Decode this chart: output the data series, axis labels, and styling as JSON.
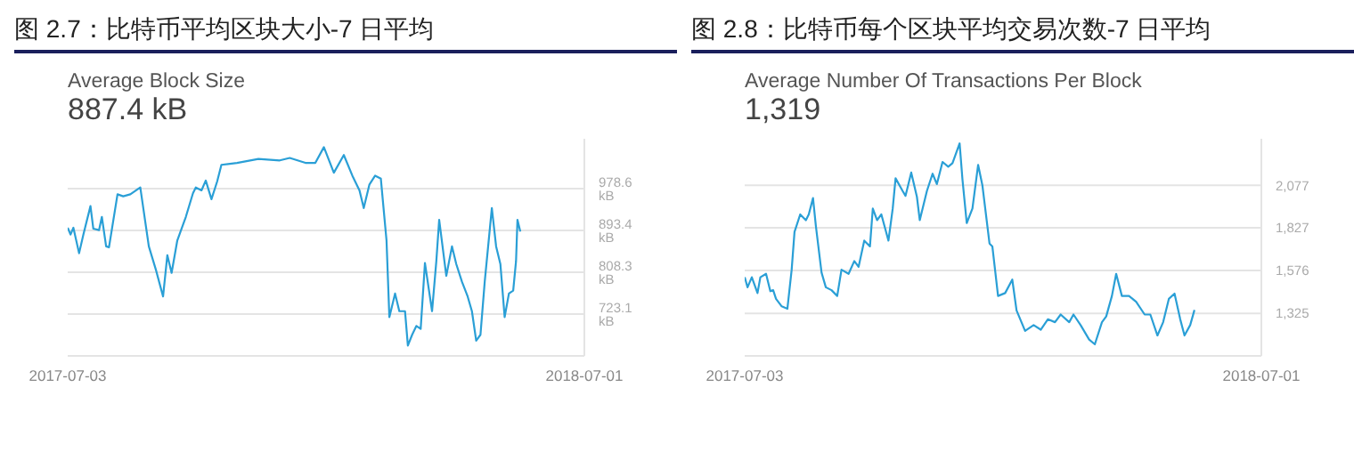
{
  "chart_data": [
    {
      "type": "line",
      "title": "图 2.7：比特币平均区块大小-7 日平均",
      "subtitle": "Average Block Size",
      "annotations": [
        "887.4 kB"
      ],
      "grid": "y",
      "xlim": [
        "2017-07-03",
        "2018-07-01"
      ],
      "xticks": [
        "2017-07-03",
        "2018-07-01"
      ],
      "ylim": [
        638,
        1080
      ],
      "yticks": [
        {
          "value": 638,
          "label": null
        },
        {
          "value": 723.1,
          "label": "723.1 kB"
        },
        {
          "value": 808.3,
          "label": "808.3 kB"
        },
        {
          "value": 893.4,
          "label": "893.4 kB"
        },
        {
          "value": 978.6,
          "label": "978.6 kB"
        }
      ],
      "x": [
        "2017-07-03",
        "2017-07-05",
        "2017-07-07",
        "2017-07-11",
        "2017-07-14",
        "2017-07-19",
        "2017-07-21",
        "2017-07-25",
        "2017-07-27",
        "2017-07-30",
        "2017-08-01",
        "2017-08-07",
        "2017-08-11",
        "2017-08-16",
        "2017-08-23",
        "2017-08-29",
        "2017-09-03",
        "2017-09-08",
        "2017-09-11",
        "2017-09-14",
        "2017-09-18",
        "2017-09-24",
        "2017-09-29",
        "2017-10-01",
        "2017-10-05",
        "2017-10-08",
        "2017-10-12",
        "2017-10-16",
        "2017-10-19",
        "2017-10-30",
        "2017-11-14",
        "2017-11-29",
        "2017-12-06",
        "2017-12-17",
        "2017-12-24",
        "2017-12-30",
        "2018-01-06",
        "2018-01-13",
        "2018-01-19",
        "2018-01-24",
        "2018-01-27",
        "2018-01-31",
        "2018-02-04",
        "2018-02-08",
        "2018-02-12",
        "2018-02-14",
        "2018-02-18",
        "2018-02-21",
        "2018-02-25",
        "2018-02-27",
        "2018-03-02",
        "2018-03-05",
        "2018-03-08",
        "2018-03-11",
        "2018-03-16",
        "2018-03-19",
        "2018-03-21",
        "2018-03-26",
        "2018-03-30",
        "2018-04-02",
        "2018-04-06",
        "2018-04-10",
        "2018-04-13",
        "2018-04-16",
        "2018-04-19",
        "2018-04-22",
        "2018-04-27",
        "2018-04-30",
        "2018-05-03",
        "2018-05-06",
        "2018-05-09",
        "2018-05-12",
        "2018-05-14",
        "2018-05-15",
        "2018-05-17"
      ],
      "series": [
        {
          "color": "#2a9fd6",
          "values": [
            899,
            885,
            899,
            847,
            885,
            943,
            897,
            894,
            921,
            861,
            859,
            967,
            963,
            967,
            981,
            861,
            813,
            759,
            843,
            807,
            873,
            921,
            969,
            981,
            975,
            995,
            957,
            993,
            1027,
            1031,
            1039,
            1036,
            1041,
            1031,
            1031,
            1063,
            1011,
            1047,
            1005,
            975,
            939,
            987,
            1005,
            999,
            873,
            717,
            765,
            729,
            729,
            659,
            681,
            699,
            693,
            827,
            729,
            831,
            915,
            801,
            861,
            825,
            789,
            759,
            729,
            669,
            681,
            789,
            939,
            861,
            825,
            717,
            765,
            771,
            831,
            915,
            891
          ]
        }
      ]
    },
    {
      "type": "line",
      "title": "图 2.8：比特币每个区块平均交易次数-7 日平均",
      "subtitle": "Average Number Of Transactions Per Block",
      "annotations": [
        "1,319"
      ],
      "grid": "y",
      "xlim": [
        "2017-07-03",
        "2018-07-01"
      ],
      "xticks": [
        "2017-07-03",
        "2018-07-01"
      ],
      "ylim": [
        1075,
        2350
      ],
      "yticks": [
        {
          "value": 1075,
          "label": null
        },
        {
          "value": 1325,
          "label": "1,325"
        },
        {
          "value": 1576,
          "label": "1,576"
        },
        {
          "value": 1827,
          "label": "1,827"
        },
        {
          "value": 2077,
          "label": "2,077"
        }
      ],
      "x": [
        "2017-07-03",
        "2017-07-05",
        "2017-07-08",
        "2017-07-12",
        "2017-07-14",
        "2017-07-18",
        "2017-07-21",
        "2017-07-23",
        "2017-07-25",
        "2017-07-29",
        "2017-08-02",
        "2017-08-05",
        "2017-08-07",
        "2017-08-11",
        "2017-08-15",
        "2017-08-17",
        "2017-08-20",
        "2017-08-22",
        "2017-08-26",
        "2017-08-29",
        "2017-09-02",
        "2017-09-06",
        "2017-09-09",
        "2017-09-14",
        "2017-09-18",
        "2017-09-21",
        "2017-09-25",
        "2017-09-29",
        "2017-10-01",
        "2017-10-04",
        "2017-10-07",
        "2017-10-12",
        "2017-10-15",
        "2017-10-17",
        "2017-10-22",
        "2017-10-24",
        "2017-10-28",
        "2017-11-01",
        "2017-11-03",
        "2017-11-08",
        "2017-11-12",
        "2017-11-15",
        "2017-11-19",
        "2017-11-23",
        "2017-11-26",
        "2017-12-01",
        "2017-12-03",
        "2017-12-06",
        "2017-12-10",
        "2017-12-14",
        "2017-12-17",
        "2017-12-22",
        "2017-12-24",
        "2017-12-28",
        "2018-01-02",
        "2018-01-07",
        "2018-01-10",
        "2018-01-16",
        "2018-01-22",
        "2018-01-27",
        "2018-02-01",
        "2018-02-06",
        "2018-02-10",
        "2018-02-16",
        "2018-02-19",
        "2018-02-24",
        "2018-03-02",
        "2018-03-06",
        "2018-03-11",
        "2018-03-14",
        "2018-03-18",
        "2018-03-21",
        "2018-03-25",
        "2018-03-30",
        "2018-04-04",
        "2018-04-10",
        "2018-04-14",
        "2018-04-19",
        "2018-04-23",
        "2018-04-27",
        "2018-05-01",
        "2018-05-05",
        "2018-05-08",
        "2018-05-12",
        "2018-05-15"
      ],
      "series": [
        {
          "color": "#2a9fd6",
          "values": [
            1537,
            1478,
            1537,
            1444,
            1537,
            1557,
            1455,
            1461,
            1410,
            1366,
            1352,
            1581,
            1803,
            1906,
            1872,
            1906,
            2002,
            1838,
            1564,
            1478,
            1461,
            1427,
            1581,
            1557,
            1632,
            1598,
            1752,
            1718,
            1940,
            1872,
            1906,
            1752,
            1940,
            2118,
            2043,
            2015,
            2152,
            2009,
            1872,
            2043,
            2145,
            2084,
            2214,
            2186,
            2207,
            2323,
            2111,
            1855,
            1940,
            2197,
            2077,
            1735,
            1718,
            1427,
            1444,
            1523,
            1342,
            1222,
            1256,
            1229,
            1290,
            1273,
            1318,
            1273,
            1318,
            1256,
            1171,
            1143,
            1273,
            1307,
            1427,
            1557,
            1427,
            1427,
            1393,
            1318,
            1318,
            1195,
            1273,
            1410,
            1441,
            1290,
            1195,
            1256,
            1345
          ]
        }
      ]
    }
  ]
}
